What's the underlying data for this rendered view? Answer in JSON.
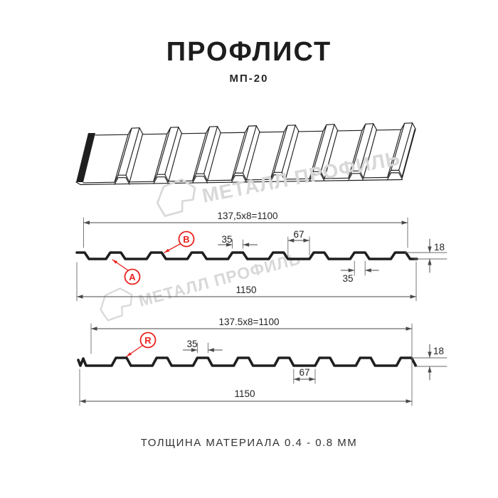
{
  "header": {
    "title": "ПРОФЛИСТ",
    "subtitle": "МП-20"
  },
  "watermark": {
    "text": "МЕТАЛЛ ПРОФИЛЬ"
  },
  "profile_top": {
    "coverage_width": "137,5x8=1100",
    "rib_top_width": "35",
    "pan_width": "67",
    "profile_height": "18",
    "rib_top_width_lower": "35",
    "overall_width": "1150",
    "label_a": "A",
    "label_b": "B"
  },
  "profile_bottom": {
    "coverage_width": "137.5x8=1100",
    "rib_top_width": "35",
    "pan_width": "67",
    "profile_height": "18",
    "overall_width": "1150",
    "label_r": "R"
  },
  "footer": {
    "note": "ТОЛЩИНА МАТЕРИАЛА 0.4 - 0.8 ММ"
  },
  "colors": {
    "accent_red": "#e8221c",
    "line_color": "#1f1f1f",
    "dim_color": "#4a4a4a",
    "watermark_gray": "#d8d8d8"
  }
}
